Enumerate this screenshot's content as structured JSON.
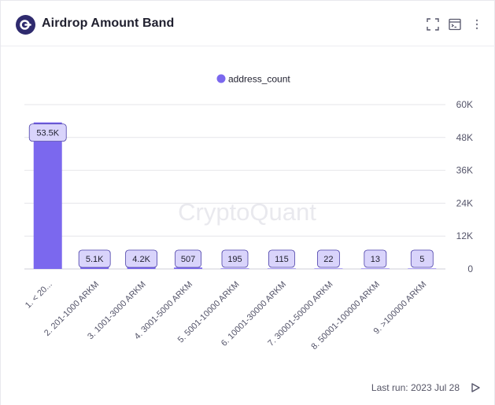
{
  "header": {
    "title": "Airdrop Amount Band",
    "icons": [
      "logo-icon",
      "fullscreen-icon",
      "console-icon",
      "more-vertical-icon"
    ]
  },
  "watermark": "CryptoQuant",
  "footer": {
    "last_run": "Last run: 2023 Jul 28"
  },
  "colors": {
    "bar": "#7b68ee",
    "label_bg": "#d9d4fb",
    "label_border": "#4a3fa8",
    "grid": "#e6e6ea",
    "axis_text": "#55556a"
  },
  "chart_data": {
    "type": "bar",
    "legend": {
      "position": "top-center"
    },
    "series": [
      {
        "name": "address_count",
        "values": [
          53500,
          5100,
          4200,
          507,
          195,
          115,
          22,
          13,
          5
        ],
        "labels": [
          "53.5K",
          "5.1K",
          "4.2K",
          "507",
          "195",
          "115",
          "22",
          "13",
          "5"
        ]
      }
    ],
    "categories": [
      "1. < 20...",
      "2. 201-1000 ARKM",
      "3. 1001-3000 ARKM",
      "4. 3001-5000 ARKM",
      "5. 5001-10000 ARKM",
      "6. 10001-30000 ARKM",
      "7. 30001-50000 ARKM",
      "8. 50001-100000 ARKM",
      "9. >100000 ARKM"
    ],
    "y_axis": {
      "position": "right",
      "ylim": [
        0,
        60000
      ],
      "ticks": [
        "0",
        "12K",
        "24K",
        "36K",
        "48K",
        "60K"
      ]
    },
    "grid": true
  }
}
